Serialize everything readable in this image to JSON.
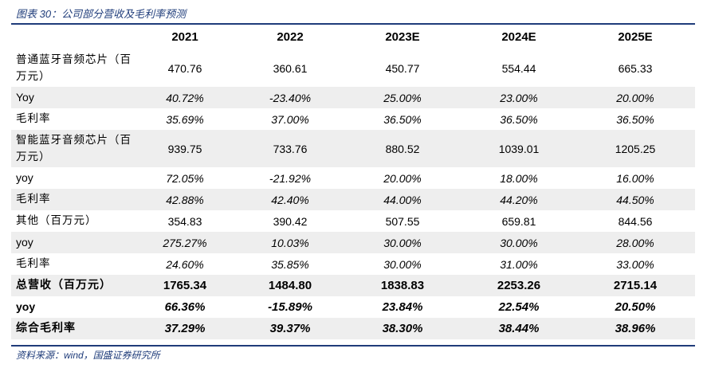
{
  "caption": "图表 30：公司部分营收及毛利率预测",
  "source": "资料来源：wind，国盛证券研究所",
  "columns": [
    "",
    "2021",
    "2022",
    "2023E",
    "2024E",
    "2025E"
  ],
  "rows": [
    {
      "label": "普通蓝牙音频芯片（百万元）",
      "values": [
        "470.76",
        "360.61",
        "450.77",
        "554.44",
        "665.33"
      ]
    },
    {
      "label": "Yoy",
      "values": [
        "40.72%",
        "-23.40%",
        "25.00%",
        "23.00%",
        "20.00%"
      ]
    },
    {
      "label": "毛利率",
      "values": [
        "35.69%",
        "37.00%",
        "36.50%",
        "36.50%",
        "36.50%"
      ]
    },
    {
      "label": "智能蓝牙音频芯片（百万元）",
      "values": [
        "939.75",
        "733.76",
        "880.52",
        "1039.01",
        "1205.25"
      ]
    },
    {
      "label": "yoy",
      "values": [
        "72.05%",
        "-21.92%",
        "20.00%",
        "18.00%",
        "16.00%"
      ]
    },
    {
      "label": "毛利率",
      "values": [
        "42.88%",
        "42.40%",
        "44.00%",
        "44.20%",
        "44.50%"
      ]
    },
    {
      "label": "其他（百万元）",
      "values": [
        "354.83",
        "390.42",
        "507.55",
        "659.81",
        "844.56"
      ]
    },
    {
      "label": "yoy",
      "values": [
        "275.27%",
        "10.03%",
        "30.00%",
        "30.00%",
        "28.00%"
      ]
    },
    {
      "label": "毛利率",
      "values": [
        "24.60%",
        "35.85%",
        "30.00%",
        "31.00%",
        "33.00%"
      ]
    },
    {
      "label": "总营收（百万元）",
      "values": [
        "1765.34",
        "1484.80",
        "1838.83",
        "2253.26",
        "2715.14"
      ]
    },
    {
      "label": "yoy",
      "values": [
        "66.36%",
        "-15.89%",
        "23.84%",
        "22.54%",
        "20.50%"
      ]
    },
    {
      "label": "综合毛利率",
      "values": [
        "37.29%",
        "39.37%",
        "38.30%",
        "38.44%",
        "38.96%"
      ]
    }
  ]
}
